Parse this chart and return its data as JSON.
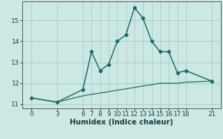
{
  "title": "",
  "xlabel": "Humidex (Indice chaleur)",
  "bg_color": "#cce8e4",
  "grid_color": "#aacfcc",
  "line_color": "#1a6b60",
  "line1_x": [
    0,
    3,
    6,
    7,
    8,
    9,
    10,
    11,
    12,
    13,
    14,
    15,
    16,
    17,
    18,
    21
  ],
  "line1_y": [
    11.3,
    11.1,
    11.7,
    13.5,
    12.6,
    12.9,
    14.0,
    14.3,
    15.6,
    15.1,
    14.0,
    13.5,
    13.5,
    12.5,
    12.6,
    12.1
  ],
  "line2_x": [
    0,
    3,
    6,
    7,
    8,
    9,
    10,
    11,
    12,
    13,
    14,
    15,
    16,
    17,
    18,
    21
  ],
  "line2_y": [
    11.3,
    11.1,
    11.4,
    11.47,
    11.53,
    11.6,
    11.67,
    11.73,
    11.8,
    11.87,
    11.93,
    12.0,
    12.0,
    12.0,
    12.05,
    12.1
  ],
  "ylim": [
    10.8,
    15.9
  ],
  "yticks": [
    11,
    12,
    13,
    14,
    15
  ],
  "xticks": [
    0,
    3,
    6,
    7,
    8,
    9,
    10,
    11,
    12,
    13,
    14,
    15,
    16,
    17,
    18,
    21
  ],
  "tick_fontsize": 6.5,
  "xlabel_fontsize": 7.5
}
